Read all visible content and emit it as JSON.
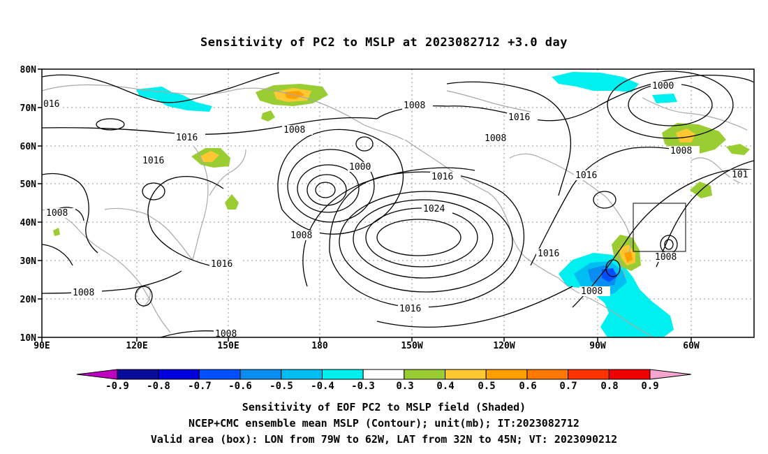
{
  "title": "Sensitivity of PC2 to MSLP at 2023082712 +3.0 day",
  "map": {
    "lat_labels": [
      "80N",
      "70N",
      "60N",
      "50N",
      "40N",
      "30N",
      "20N",
      "10N"
    ],
    "lon_labels": [
      "90E",
      "120E",
      "150E",
      "180",
      "150W",
      "120W",
      "90W",
      "60W"
    ],
    "lon_range_deg_east": [
      90,
      325
    ],
    "lat_range": [
      10,
      80
    ],
    "grid": "dotted every 30 deg longitude and 10 deg latitude",
    "contour_color": "#000000",
    "coastline_color": "#a8a8a8",
    "contour_labels": [
      "016",
      "1008",
      "1016",
      "1016",
      "1008",
      "1008",
      "1016",
      "1000",
      "1016",
      "1024",
      "1008",
      "1016",
      "1016",
      "1016",
      "1008",
      "1008",
      "1016",
      "1008",
      "1000",
      "1008",
      "101",
      "1008",
      "1008"
    ],
    "valid_box": {
      "lon": [
        -79,
        -62
      ],
      "lat": [
        32,
        45
      ]
    }
  },
  "colorbar": {
    "ticks": [
      "-0.9",
      "-0.8",
      "-0.7",
      "-0.6",
      "-0.5",
      "-0.4",
      "-0.3",
      "0.3",
      "0.4",
      "0.5",
      "0.6",
      "0.7",
      "0.8",
      "0.9"
    ],
    "left_cap_color": "#c000c0",
    "right_cap_color": "#f4a6d0",
    "colors": [
      "#0a0a9c",
      "#0000dd",
      "#0050ff",
      "#0a8cf0",
      "#00bdf2",
      "#00f0f0",
      "#ffffff",
      "#9acd32",
      "#ffc832",
      "#ffa000",
      "#ff7800",
      "#ff3200",
      "#f00000"
    ]
  },
  "captions": [
    "Sensitivity of EOF PC2 to MSLP field (Shaded)",
    "NCEP+CMC ensemble mean MSLP (Contour); unit(mb); IT:2023082712",
    "Valid area (box): LON from 79W to 62W, LAT from 32N to 45N; VT: 2023090212"
  ]
}
